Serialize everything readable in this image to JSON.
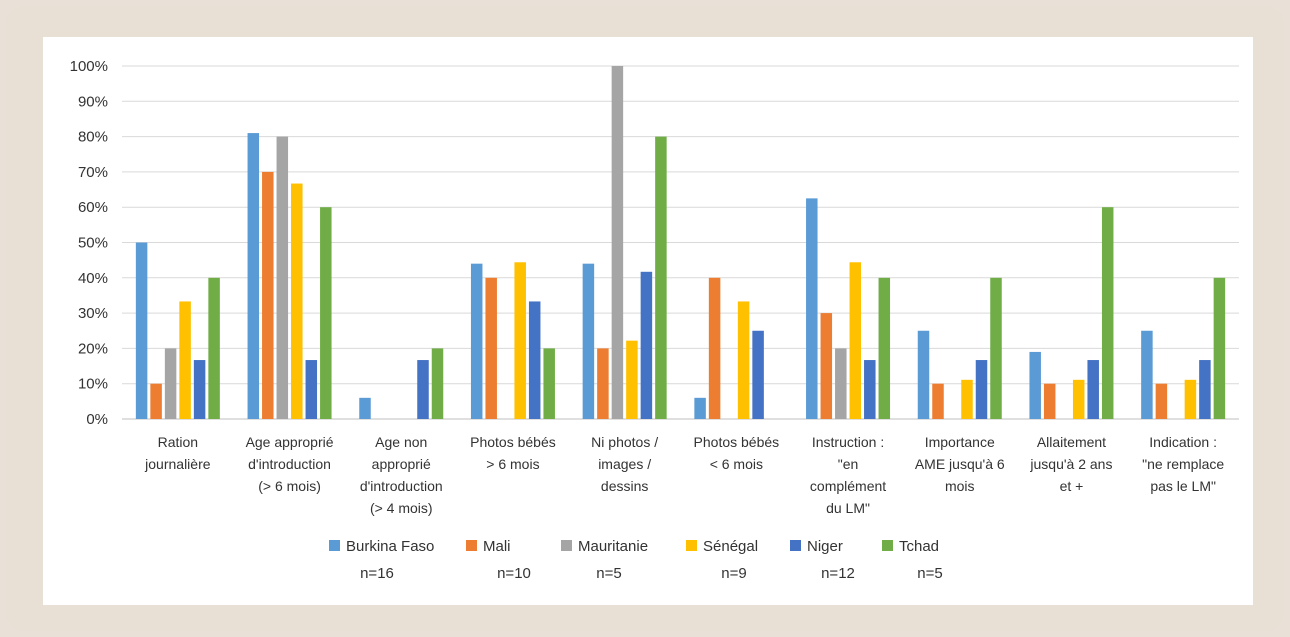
{
  "chart_data": {
    "type": "bar",
    "title": "",
    "xlabel": "",
    "ylabel": "",
    "ylim": [
      0,
      100
    ],
    "y_ticks": [
      "0%",
      "10%",
      "20%",
      "30%",
      "40%",
      "50%",
      "60%",
      "70%",
      "80%",
      "90%",
      "100%"
    ],
    "grid": true,
    "legend_position": "bottom",
    "categories": [
      [
        "Ration",
        "journalière"
      ],
      [
        "Age approprié",
        "d'introduction",
        "(> 6 mois)"
      ],
      [
        "Age non",
        "approprié",
        "d'introduction",
        "(> 4 mois)"
      ],
      [
        "Photos bébés",
        "> 6 mois"
      ],
      [
        "Ni photos /",
        "images /",
        "dessins"
      ],
      [
        "Photos bébés",
        "< 6 mois"
      ],
      [
        "Instruction :",
        "\"en",
        "complément",
        "du LM\""
      ],
      [
        "Importance",
        "AME jusqu'à 6",
        "mois"
      ],
      [
        "Allaitement",
        "jusqu'à 2 ans",
        "et +"
      ],
      [
        "Indication :",
        "\"ne remplace",
        "pas le LM\""
      ]
    ],
    "series": [
      {
        "name": "Burkina Faso",
        "n": "n=16",
        "color": "#5b9bd5",
        "values": [
          50,
          81,
          6,
          44,
          44,
          6,
          62.5,
          25,
          19,
          25
        ]
      },
      {
        "name": "Mali",
        "n": "n=10",
        "color": "#ed7d31",
        "values": [
          10,
          70,
          0,
          40,
          20,
          40,
          30,
          10,
          10,
          10
        ]
      },
      {
        "name": "Mauritanie",
        "n": "n=5",
        "color": "#a5a5a5",
        "values": [
          20,
          80,
          0,
          0,
          100,
          0,
          20,
          0,
          0,
          0
        ]
      },
      {
        "name": "Sénégal",
        "n": "n=9",
        "color": "#ffc000",
        "values": [
          33.3,
          66.7,
          0,
          44.4,
          22.2,
          33.3,
          44.4,
          11.1,
          11.1,
          11.1
        ]
      },
      {
        "name": "Niger",
        "n": "n=12",
        "color": "#4472c4",
        "values": [
          16.7,
          16.7,
          16.7,
          33.3,
          41.7,
          25,
          16.7,
          16.7,
          16.7,
          16.7
        ]
      },
      {
        "name": "Tchad",
        "n": "n=5",
        "color": "#70ad47",
        "values": [
          40,
          60,
          20,
          20,
          80,
          0,
          40,
          40,
          60,
          40
        ]
      }
    ]
  }
}
